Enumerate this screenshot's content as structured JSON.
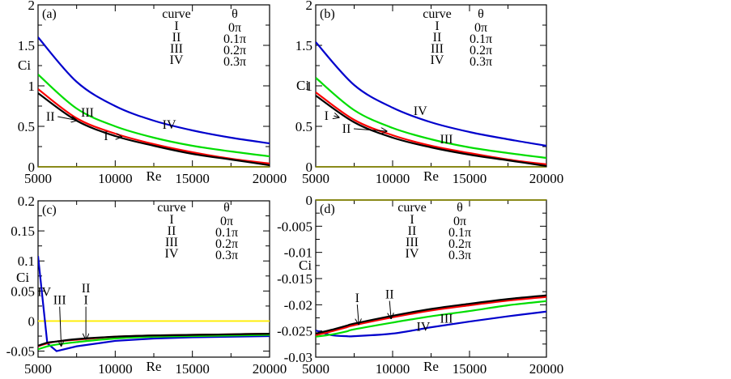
{
  "figure": {
    "description": "Four-panel plot of Ci versus Re for curves I-IV at different theta"
  },
  "chart_data": [
    {
      "id": "a",
      "type": "line",
      "panel_label": "(a)",
      "xlabel": "Re",
      "ylabel": "Ci",
      "xlim": [
        5000,
        20000
      ],
      "ylim": [
        0,
        2
      ],
      "xticks": [
        5000,
        10000,
        15000,
        20000
      ],
      "xtick_labels": [
        "5000",
        "10000",
        "15000",
        "20000"
      ],
      "x_minor_ticks": [
        7500,
        12500,
        17500
      ],
      "yticks": [
        0,
        0.5,
        1,
        1.5,
        2
      ],
      "ytick_labels": [
        "0",
        "0.5",
        "1",
        "1.5",
        "2"
      ],
      "y_minor_ticks": [
        0.25,
        0.75,
        1.25,
        1.75
      ],
      "legend": {
        "header": [
          "curve",
          "θ"
        ],
        "rows": [
          [
            "I",
            "0π"
          ],
          [
            "II",
            "0.1π"
          ],
          [
            "III",
            "0.2π"
          ],
          [
            "IV",
            "0.3π"
          ]
        ],
        "placement": "top-right"
      },
      "x": [
        5000,
        7500,
        10000,
        12500,
        15000,
        17500,
        20000
      ],
      "series": [
        {
          "name": "I",
          "color": "#000000",
          "values": [
            0.91,
            0.57,
            0.38,
            0.26,
            0.16,
            0.09,
            0.02
          ]
        },
        {
          "name": "II",
          "color": "#ff0000",
          "values": [
            0.96,
            0.6,
            0.41,
            0.28,
            0.18,
            0.1,
            0.04
          ]
        },
        {
          "name": "III",
          "color": "#00dd00",
          "values": [
            1.14,
            0.72,
            0.5,
            0.36,
            0.26,
            0.19,
            0.13
          ]
        },
        {
          "name": "IV",
          "color": "#0000cc",
          "values": [
            1.6,
            1.05,
            0.75,
            0.57,
            0.45,
            0.36,
            0.29
          ]
        },
        {
          "name": "zero",
          "color": "#808000",
          "values": [
            0,
            0,
            0,
            0,
            0,
            0,
            0
          ]
        }
      ],
      "annotations": [
        {
          "text": "II",
          "at": [
            5800,
            0.57
          ],
          "arrow_to": [
            7500,
            0.575
          ]
        },
        {
          "text": "III",
          "at": [
            8200,
            0.62
          ]
        },
        {
          "text": "I",
          "at": [
            9400,
            0.33
          ],
          "arrow_to": [
            10400,
            0.37
          ]
        },
        {
          "text": "IV",
          "at": [
            13500,
            0.47
          ]
        }
      ]
    },
    {
      "id": "b",
      "type": "line",
      "panel_label": "(b)",
      "xlabel": "Re",
      "ylabel": "Ci",
      "xlim": [
        5000,
        20000
      ],
      "ylim": [
        0,
        2
      ],
      "xticks": [
        5000,
        10000,
        15000,
        20000
      ],
      "xtick_labels": [
        "5000",
        "10000",
        "15000",
        "20000"
      ],
      "x_minor_ticks": [
        7500,
        12500,
        17500
      ],
      "yticks": [
        0,
        0.5,
        1,
        1.5,
        2
      ],
      "ytick_labels": [
        "0",
        "0.5",
        "1",
        "1.5",
        "2"
      ],
      "y_minor_ticks": [
        0.25,
        0.75,
        1.25,
        1.75
      ],
      "legend": {
        "header": [
          "curve",
          "θ"
        ],
        "rows": [
          [
            "I",
            "0π"
          ],
          [
            "II",
            "0.1π"
          ],
          [
            "III",
            "0.2π"
          ],
          [
            "IV",
            "0.3π"
          ]
        ],
        "placement": "top-right"
      },
      "x": [
        5000,
        7500,
        10000,
        12500,
        15000,
        17500,
        20000
      ],
      "series": [
        {
          "name": "I",
          "color": "#000000",
          "values": [
            0.88,
            0.55,
            0.36,
            0.24,
            0.15,
            0.08,
            0.01
          ]
        },
        {
          "name": "II",
          "color": "#ff0000",
          "values": [
            0.92,
            0.58,
            0.39,
            0.26,
            0.17,
            0.09,
            0.03
          ]
        },
        {
          "name": "III",
          "color": "#00dd00",
          "values": [
            1.1,
            0.7,
            0.48,
            0.34,
            0.24,
            0.17,
            0.11
          ]
        },
        {
          "name": "IV",
          "color": "#0000cc",
          "values": [
            1.54,
            1.01,
            0.73,
            0.55,
            0.43,
            0.34,
            0.26
          ]
        },
        {
          "name": "zero",
          "color": "#808000",
          "values": [
            0,
            0,
            0,
            0,
            0,
            0,
            0
          ]
        }
      ],
      "annotations": [
        {
          "text": "I",
          "at": [
            5700,
            0.58
          ],
          "arrow_to": [
            6500,
            0.61
          ]
        },
        {
          "text": "II",
          "at": [
            7000,
            0.42
          ],
          "arrow_to": [
            9600,
            0.44
          ]
        },
        {
          "text": "III",
          "at": [
            13500,
            0.29
          ]
        },
        {
          "text": "IV",
          "at": [
            11800,
            0.64
          ]
        }
      ]
    },
    {
      "id": "c",
      "type": "line",
      "panel_label": "(c)",
      "xlabel": "Re",
      "ylabel": "Ci",
      "xlim": [
        5000,
        20000
      ],
      "ylim": [
        -0.06,
        0.2
      ],
      "xticks": [
        5000,
        10000,
        15000,
        20000
      ],
      "xtick_labels": [
        "5000",
        "10000",
        "15000",
        "20000"
      ],
      "x_minor_ticks": [
        7500,
        12500,
        17500
      ],
      "yticks": [
        -0.05,
        0,
        0.05,
        0.1,
        0.15,
        0.2
      ],
      "ytick_labels": [
        "-0.05",
        "0",
        "0.05",
        "0.1",
        "0.15",
        "0.2"
      ],
      "y_minor_ticks": [
        -0.025,
        0.025,
        0.075,
        0.125,
        0.175
      ],
      "legend": {
        "header": [
          "curve",
          "θ"
        ],
        "rows": [
          [
            "I",
            "0π"
          ],
          [
            "II",
            "0.1π"
          ],
          [
            "III",
            "0.2π"
          ],
          [
            "IV",
            "0.3π"
          ]
        ],
        "placement": "top-right"
      },
      "x": [
        5000,
        5600,
        6200,
        7500,
        10000,
        12500,
        15000,
        17500,
        20000
      ],
      "series": [
        {
          "name": "I",
          "color": "#000000",
          "values": [
            -0.041,
            -0.036,
            -0.034,
            -0.03,
            -0.026,
            -0.024,
            -0.023,
            -0.022,
            -0.021
          ]
        },
        {
          "name": "II",
          "color": "#ff0000",
          "values": [
            -0.042,
            -0.037,
            -0.034,
            -0.031,
            -0.026,
            -0.024,
            -0.023,
            -0.022,
            -0.021
          ]
        },
        {
          "name": "III",
          "color": "#00dd00",
          "values": [
            -0.047,
            -0.042,
            -0.039,
            -0.035,
            -0.029,
            -0.026,
            -0.025,
            -0.024,
            -0.023
          ]
        },
        {
          "name": "IV",
          "color": "#0000cc",
          "values": [
            0.108,
            -0.037,
            -0.05,
            -0.042,
            -0.033,
            -0.029,
            -0.027,
            -0.026,
            -0.025
          ]
        },
        {
          "name": "zero",
          "color": "#ffee00",
          "values": [
            0,
            0,
            0,
            0,
            0,
            0,
            0,
            0,
            0
          ]
        }
      ],
      "annotations": [
        {
          "text": "IV",
          "at": [
            5400,
            0.042
          ]
        },
        {
          "text": "III",
          "at": [
            6400,
            0.028
          ],
          "arrow_to": [
            6500,
            -0.041
          ]
        },
        {
          "text": "II",
          "at": [
            8100,
            0.048
          ]
        },
        {
          "text": "I",
          "at": [
            8100,
            0.028
          ],
          "arrow_to": [
            8100,
            -0.03
          ]
        }
      ]
    },
    {
      "id": "d",
      "type": "line",
      "panel_label": "(d)",
      "xlabel": "Re",
      "ylabel": "Ci",
      "xlim": [
        5000,
        20000
      ],
      "ylim": [
        -0.03,
        0
      ],
      "xticks": [
        5000,
        10000,
        15000,
        20000
      ],
      "xtick_labels": [
        "5000",
        "10000",
        "15000",
        "20000"
      ],
      "x_minor_ticks": [
        7500,
        12500,
        17500
      ],
      "yticks": [
        -0.03,
        -0.025,
        -0.02,
        -0.015,
        -0.01,
        -0.005,
        0
      ],
      "ytick_labels": [
        "-0.03",
        "-0.025",
        "-0.02",
        "-0.015",
        "-0.01",
        "-0.005",
        "0"
      ],
      "y_minor_ticks": [
        -0.0275,
        -0.0225,
        -0.0175,
        -0.0125,
        -0.0075,
        -0.0025
      ],
      "legend": {
        "header": [
          "curve",
          "θ"
        ],
        "rows": [
          [
            "I",
            "0π"
          ],
          [
            "II",
            "0.1π"
          ],
          [
            "III",
            "0.2π"
          ],
          [
            "IV",
            "0.3π"
          ]
        ],
        "placement": "top-center"
      },
      "x": [
        5000,
        6000,
        7000,
        7500,
        10000,
        12500,
        15000,
        17500,
        20000
      ],
      "series": [
        {
          "name": "I",
          "color": "#000000",
          "values": [
            -0.0255,
            -0.0248,
            -0.024,
            -0.0236,
            -0.0221,
            -0.0208,
            -0.0198,
            -0.0189,
            -0.0182
          ]
        },
        {
          "name": "II",
          "color": "#ff0000",
          "values": [
            -0.0258,
            -0.0251,
            -0.0243,
            -0.0239,
            -0.0224,
            -0.0211,
            -0.0201,
            -0.0192,
            -0.0185
          ]
        },
        {
          "name": "III",
          "color": "#00dd00",
          "values": [
            -0.0261,
            -0.0257,
            -0.0251,
            -0.0247,
            -0.0234,
            -0.0222,
            -0.0212,
            -0.0201,
            -0.0193
          ]
        },
        {
          "name": "IV",
          "color": "#0000cc",
          "values": [
            -0.0249,
            -0.0258,
            -0.026,
            -0.026,
            -0.0255,
            -0.0243,
            -0.0232,
            -0.0222,
            -0.0213
          ]
        },
        {
          "name": "zero",
          "color": "#808000",
          "values": [
            0,
            0,
            0,
            0,
            0,
            0,
            0,
            0,
            0
          ]
        }
      ],
      "annotations": [
        {
          "text": "I",
          "at": [
            7700,
            -0.0195
          ],
          "arrow_to": [
            7800,
            -0.0237
          ]
        },
        {
          "text": "II",
          "at": [
            9800,
            -0.0188
          ],
          "arrow_to": [
            9900,
            -0.0226
          ]
        },
        {
          "text": "III",
          "at": [
            13500,
            -0.0234
          ]
        },
        {
          "text": "IV",
          "at": [
            12000,
            -0.025
          ]
        }
      ]
    }
  ]
}
